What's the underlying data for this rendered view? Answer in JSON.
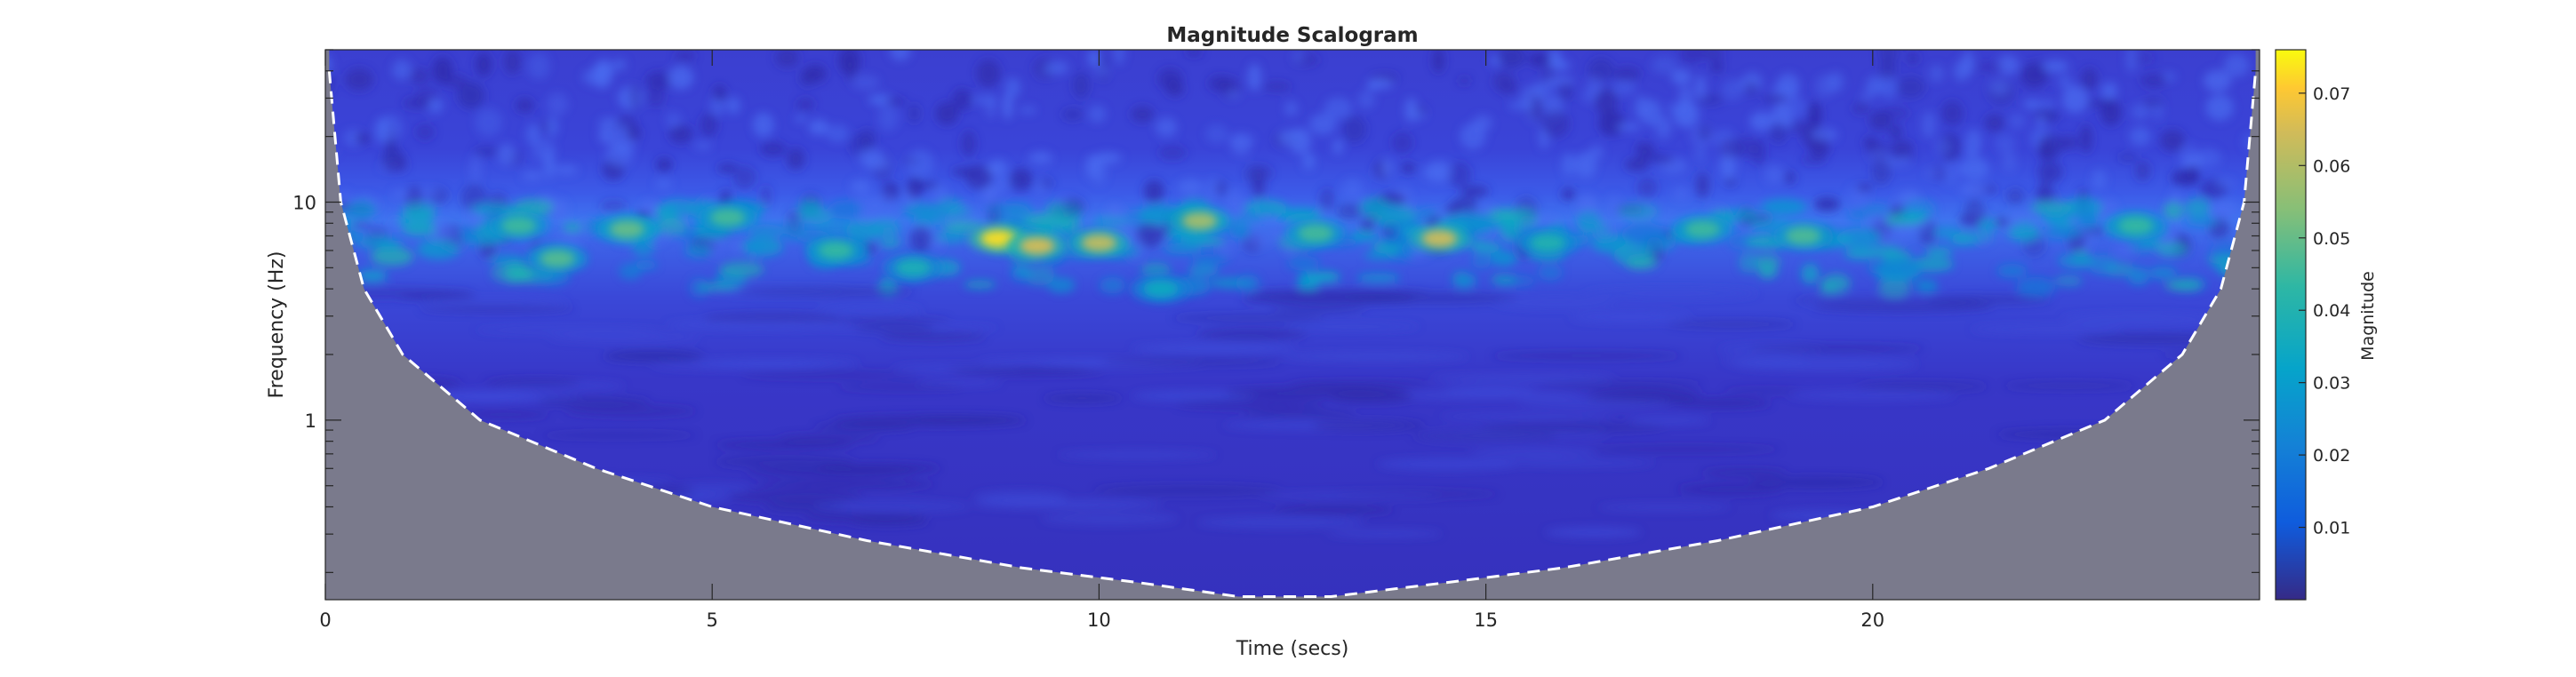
{
  "chart_data": {
    "type": "heatmap",
    "title": "Magnitude Scalogram",
    "xlabel": "Time (secs)",
    "ylabel": "Frequency (Hz)",
    "xlim": [
      0,
      25
    ],
    "ylim": [
      0.15,
      50
    ],
    "yscale": "log",
    "xticks": [
      0,
      5,
      10,
      15,
      20
    ],
    "yticks": [
      1,
      10
    ],
    "grid": false,
    "colorbar": {
      "label": "Magnitude",
      "limits": [
        0,
        0.076
      ],
      "ticks": [
        0.01,
        0.02,
        0.03,
        0.04,
        0.05,
        0.06,
        0.07
      ],
      "colormap": "parula"
    },
    "cone_of_influence": {
      "style": "white dashed line",
      "shaded_region_color": "#7a7a8c",
      "points": [
        {
          "t": 0.05,
          "f": 40
        },
        {
          "t": 0.2,
          "f": 10
        },
        {
          "t": 0.5,
          "f": 4
        },
        {
          "t": 1.0,
          "f": 2.0
        },
        {
          "t": 2.0,
          "f": 1.0
        },
        {
          "t": 3.5,
          "f": 0.6
        },
        {
          "t": 5.0,
          "f": 0.4
        },
        {
          "t": 7.0,
          "f": 0.28
        },
        {
          "t": 9.0,
          "f": 0.21
        },
        {
          "t": 10.5,
          "f": 0.18
        },
        {
          "t": 11.8,
          "f": 0.155
        },
        {
          "t": 13.0,
          "f": 0.155
        },
        {
          "t": 14.5,
          "f": 0.18
        },
        {
          "t": 16.0,
          "f": 0.21
        },
        {
          "t": 18.0,
          "f": 0.28
        },
        {
          "t": 20.0,
          "f": 0.4
        },
        {
          "t": 21.5,
          "f": 0.6
        },
        {
          "t": 23.0,
          "f": 1.0
        },
        {
          "t": 24.0,
          "f": 2.0
        },
        {
          "t": 24.5,
          "f": 4
        },
        {
          "t": 24.8,
          "f": 10
        },
        {
          "t": 24.95,
          "f": 40
        }
      ]
    },
    "hotspots": [
      {
        "t": 8.7,
        "f": 6.8,
        "magnitude": 0.073
      },
      {
        "t": 9.2,
        "f": 6.3,
        "magnitude": 0.065
      },
      {
        "t": 10.0,
        "f": 6.5,
        "magnitude": 0.062
      },
      {
        "t": 14.4,
        "f": 6.8,
        "magnitude": 0.064
      },
      {
        "t": 11.3,
        "f": 8.2,
        "magnitude": 0.058
      },
      {
        "t": 3.9,
        "f": 7.5,
        "magnitude": 0.05
      },
      {
        "t": 3.0,
        "f": 5.5,
        "magnitude": 0.048
      },
      {
        "t": 5.2,
        "f": 8.5,
        "magnitude": 0.046
      },
      {
        "t": 2.5,
        "f": 7.8,
        "magnitude": 0.045
      },
      {
        "t": 6.6,
        "f": 6.0,
        "magnitude": 0.044
      },
      {
        "t": 12.8,
        "f": 7.2,
        "magnitude": 0.046
      },
      {
        "t": 17.8,
        "f": 7.5,
        "magnitude": 0.045
      },
      {
        "t": 19.1,
        "f": 7.0,
        "magnitude": 0.047
      },
      {
        "t": 15.8,
        "f": 6.5,
        "magnitude": 0.04
      },
      {
        "t": 23.4,
        "f": 7.8,
        "magnitude": 0.044
      },
      {
        "t": 10.8,
        "f": 4.0,
        "magnitude": 0.035
      },
      {
        "t": 7.6,
        "f": 5.0,
        "magnitude": 0.038
      }
    ]
  }
}
